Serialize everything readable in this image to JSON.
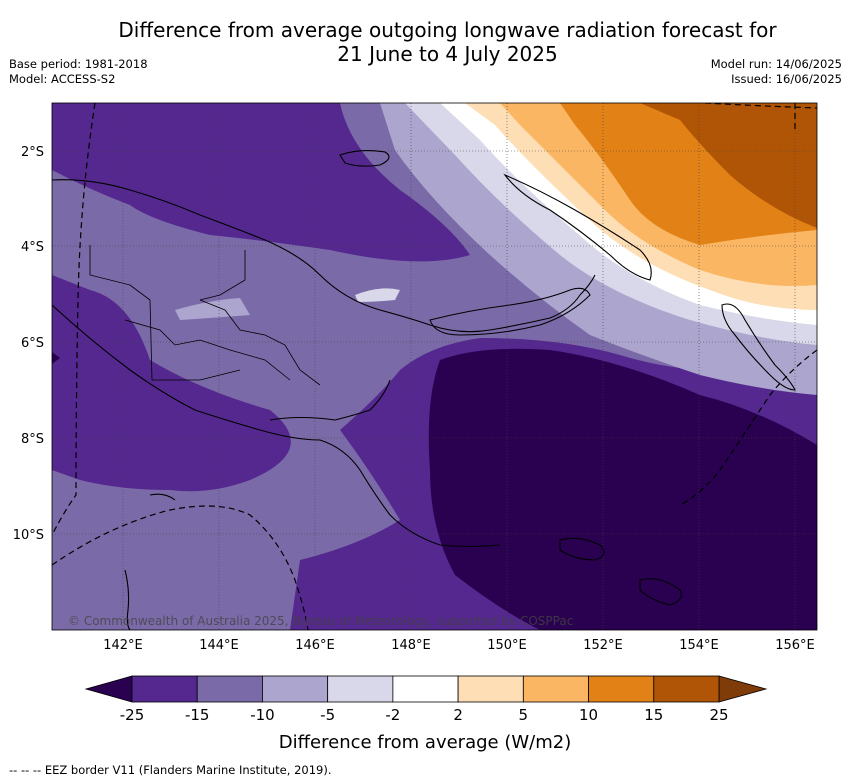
{
  "title": {
    "line1": "Difference from average outgoing longwave radiation forecast for",
    "line2": "21 June to 4 July 2025"
  },
  "meta": {
    "base_period": "Base period: 1981-2018",
    "model": "Model: ACCESS-S2",
    "model_run": "Model run: 14/06/2025",
    "issued": "Issued: 16/06/2025"
  },
  "map": {
    "lat_labels": [
      "2°S",
      "4°S",
      "6°S",
      "8°S",
      "10°S"
    ],
    "lon_labels": [
      "142°E",
      "144°E",
      "146°E",
      "148°E",
      "150°E",
      "152°E",
      "154°E",
      "156°E"
    ],
    "copyright": "© Commonwealth of Australia 2025, Bureau of Meteorology, supported by COSPPac"
  },
  "legend": {
    "ticks": [
      "-25",
      "-15",
      "-10",
      "-5",
      "-2",
      "2",
      "5",
      "10",
      "15",
      "25"
    ],
    "label": "Difference from average (W/m2)",
    "colors": [
      "#2a0050",
      "#55288f",
      "#7b6aa8",
      "#aca6cf",
      "#d8d8ea",
      "#ffffff",
      "#fedeb4",
      "#fbb663",
      "#e18116",
      "#b05505",
      "#7f3b08"
    ]
  },
  "footnote": "--  --  -- EEZ border V11 (Flanders Marine Institute, 2019)."
}
